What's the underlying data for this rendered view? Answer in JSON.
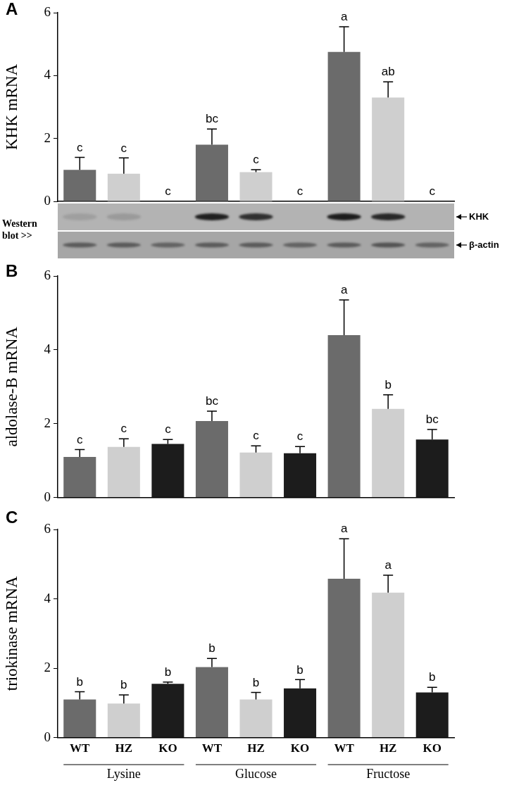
{
  "chart_data": [
    {
      "type": "bar",
      "panel": "A",
      "y_label": "KHK mRNA",
      "categories": [
        "WT",
        "HZ",
        "KO",
        "WT",
        "HZ",
        "KO",
        "WT",
        "HZ",
        "KO"
      ],
      "values": [
        1.0,
        0.88,
        0,
        1.8,
        0.93,
        0,
        4.75,
        3.3,
        0
      ],
      "errors": [
        0.4,
        0.5,
        0,
        0.5,
        0.08,
        0,
        0.8,
        0.5,
        0
      ],
      "letters": [
        "c",
        "c",
        "c",
        "bc",
        "c",
        "c",
        "a",
        "ab",
        "c"
      ],
      "colors": [
        "#6b6b6b",
        "#cfcfcf",
        "#1c1c1c",
        "#6b6b6b",
        "#cfcfcf",
        "#1c1c1c",
        "#6b6b6b",
        "#cfcfcf",
        "#1c1c1c"
      ],
      "ylim": [
        0,
        6
      ],
      "yticks": [
        0,
        2,
        4,
        6
      ],
      "grid": false,
      "tick_labels": "y",
      "blot": {
        "label": "Western blot >>",
        "rows": [
          {
            "name": "KHK",
            "intensity": [
              0.12,
              0.15,
              0,
              0.9,
              0.8,
              0,
              0.92,
              0.85,
              0
            ]
          },
          {
            "name": "β-actin",
            "intensity": [
              0.5,
              0.5,
              0.45,
              0.5,
              0.5,
              0.45,
              0.5,
              0.55,
              0.45
            ]
          }
        ]
      }
    },
    {
      "type": "bar",
      "panel": "B",
      "y_label": "aldolase-B mRNA",
      "categories": [
        "WT",
        "HZ",
        "KO",
        "WT",
        "HZ",
        "KO",
        "WT",
        "HZ",
        "KO"
      ],
      "values": [
        1.1,
        1.37,
        1.45,
        2.07,
        1.22,
        1.2,
        4.4,
        2.4,
        1.57
      ],
      "errors": [
        0.2,
        0.22,
        0.12,
        0.27,
        0.18,
        0.18,
        0.95,
        0.38,
        0.27
      ],
      "letters": [
        "c",
        "c",
        "c",
        "bc",
        "c",
        "c",
        "a",
        "b",
        "bc"
      ],
      "colors": [
        "#6b6b6b",
        "#cfcfcf",
        "#1c1c1c",
        "#6b6b6b",
        "#cfcfcf",
        "#1c1c1c",
        "#6b6b6b",
        "#cfcfcf",
        "#1c1c1c"
      ],
      "ylim": [
        0,
        6
      ],
      "yticks": [
        0,
        2,
        4,
        6
      ],
      "grid": false,
      "tick_labels": "y"
    },
    {
      "type": "bar",
      "panel": "C",
      "y_label": "triokinase mRNA",
      "categories": [
        "WT",
        "HZ",
        "KO",
        "WT",
        "HZ",
        "KO",
        "WT",
        "HZ",
        "KO"
      ],
      "groups": [
        "Lysine",
        "Glucose",
        "Fructose"
      ],
      "values": [
        1.1,
        0.98,
        1.55,
        2.03,
        1.1,
        1.42,
        4.58,
        4.18,
        1.3
      ],
      "errors": [
        0.22,
        0.25,
        0.05,
        0.25,
        0.2,
        0.25,
        1.15,
        0.5,
        0.15
      ],
      "letters": [
        "b",
        "b",
        "b",
        "b",
        "b",
        "b",
        "a",
        "a",
        "b"
      ],
      "colors": [
        "#6b6b6b",
        "#cfcfcf",
        "#1c1c1c",
        "#6b6b6b",
        "#cfcfcf",
        "#1c1c1c",
        "#6b6b6b",
        "#cfcfcf",
        "#1c1c1c"
      ],
      "ylim": [
        0,
        6
      ],
      "yticks": [
        0,
        2,
        4,
        6
      ],
      "grid": false
    }
  ]
}
